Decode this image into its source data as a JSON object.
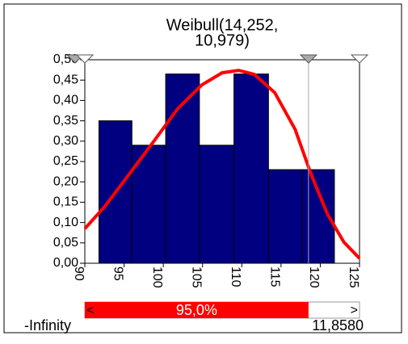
{
  "chart_data": {
    "type": "histogram",
    "title": [
      "Weibull(14,252,",
      "10,979)"
    ],
    "bins": [
      91.8,
      96.0,
      100.3,
      104.6,
      109.0,
      113.4,
      117.7,
      121.8
    ],
    "values": [
      0.35,
      0.29,
      0.465,
      0.29,
      0.465,
      0.23,
      0.23
    ],
    "color": "#000080",
    "curve": {
      "color": "#ff0000",
      "x": [
        90,
        92.6,
        95.7,
        98.8,
        101.8,
        104.9,
        107.5,
        109.6,
        111.6,
        114.2,
        116.8,
        118.8,
        120.9,
        123.0,
        125
      ],
      "values": [
        0.085,
        0.141,
        0.22,
        0.3,
        0.379,
        0.438,
        0.468,
        0.474,
        0.464,
        0.419,
        0.329,
        0.22,
        0.121,
        0.052,
        0.012
      ]
    },
    "xlim": [
      90,
      125
    ],
    "ylim": [
      0,
      0.5
    ],
    "xticks": [
      90,
      95,
      100,
      105,
      110,
      115,
      120,
      125
    ],
    "yticks": [
      {
        "value": 0,
        "label": "0,00"
      },
      {
        "value": 0.05,
        "label": "0,05"
      },
      {
        "value": 0.1,
        "label": "0,10"
      },
      {
        "value": 0.15,
        "label": "0,15"
      },
      {
        "value": 0.2,
        "label": "0,20"
      },
      {
        "value": 0.25,
        "label": "0,25"
      },
      {
        "value": 0.3,
        "label": "0,30"
      },
      {
        "value": 0.35,
        "label": "0,35"
      },
      {
        "value": 0.4,
        "label": "0,40"
      },
      {
        "value": 0.45,
        "label": "0,45"
      },
      {
        "value": 0.5,
        "label": "0,50"
      }
    ],
    "delimiter_x": 118.5,
    "interval": {
      "left_arrow": "<",
      "right_arrow": ">",
      "percent_label": "95,0%",
      "left_label": "-Infinity",
      "right_label": "11,8580"
    }
  }
}
